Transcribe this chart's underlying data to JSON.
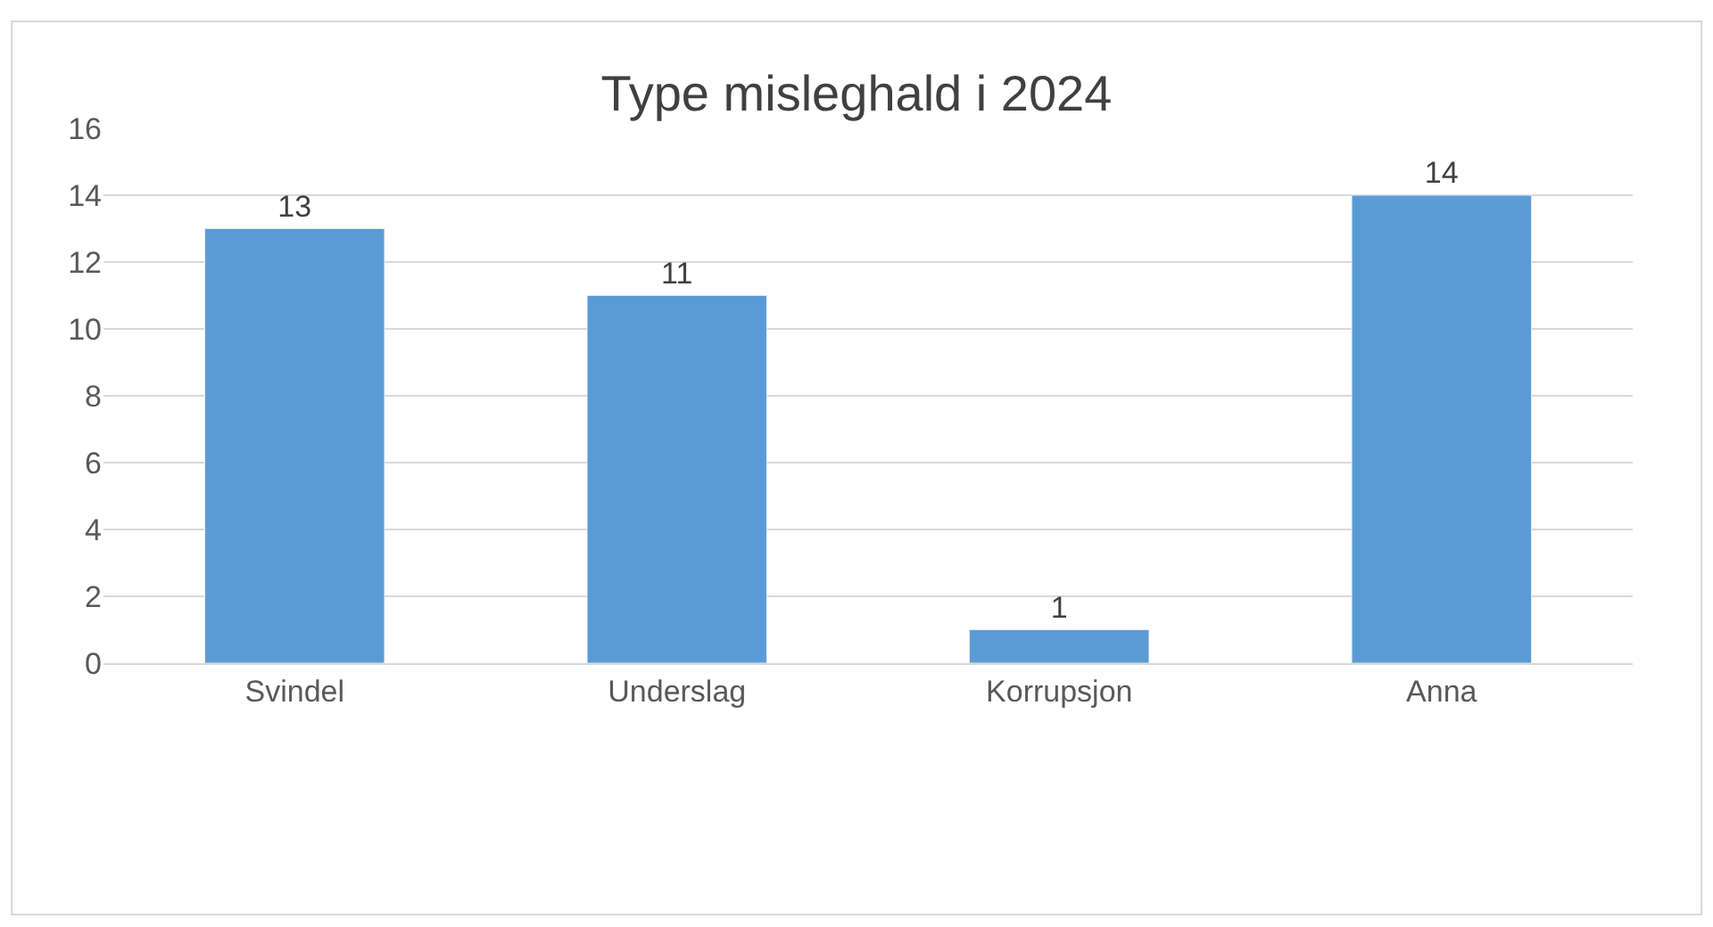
{
  "chart_data": {
    "type": "bar",
    "title": "Type misleghald i 2024",
    "categories": [
      "Svindel",
      "Underslag",
      "Korrupsjon",
      "Anna"
    ],
    "values": [
      13,
      11,
      1,
      14
    ],
    "color": "#5b9bd5",
    "ylim": [
      0,
      16
    ],
    "yticks": [
      0,
      2,
      4,
      6,
      8,
      10,
      12,
      14,
      16
    ],
    "grid": "y",
    "data_labels": true,
    "legend": false
  }
}
